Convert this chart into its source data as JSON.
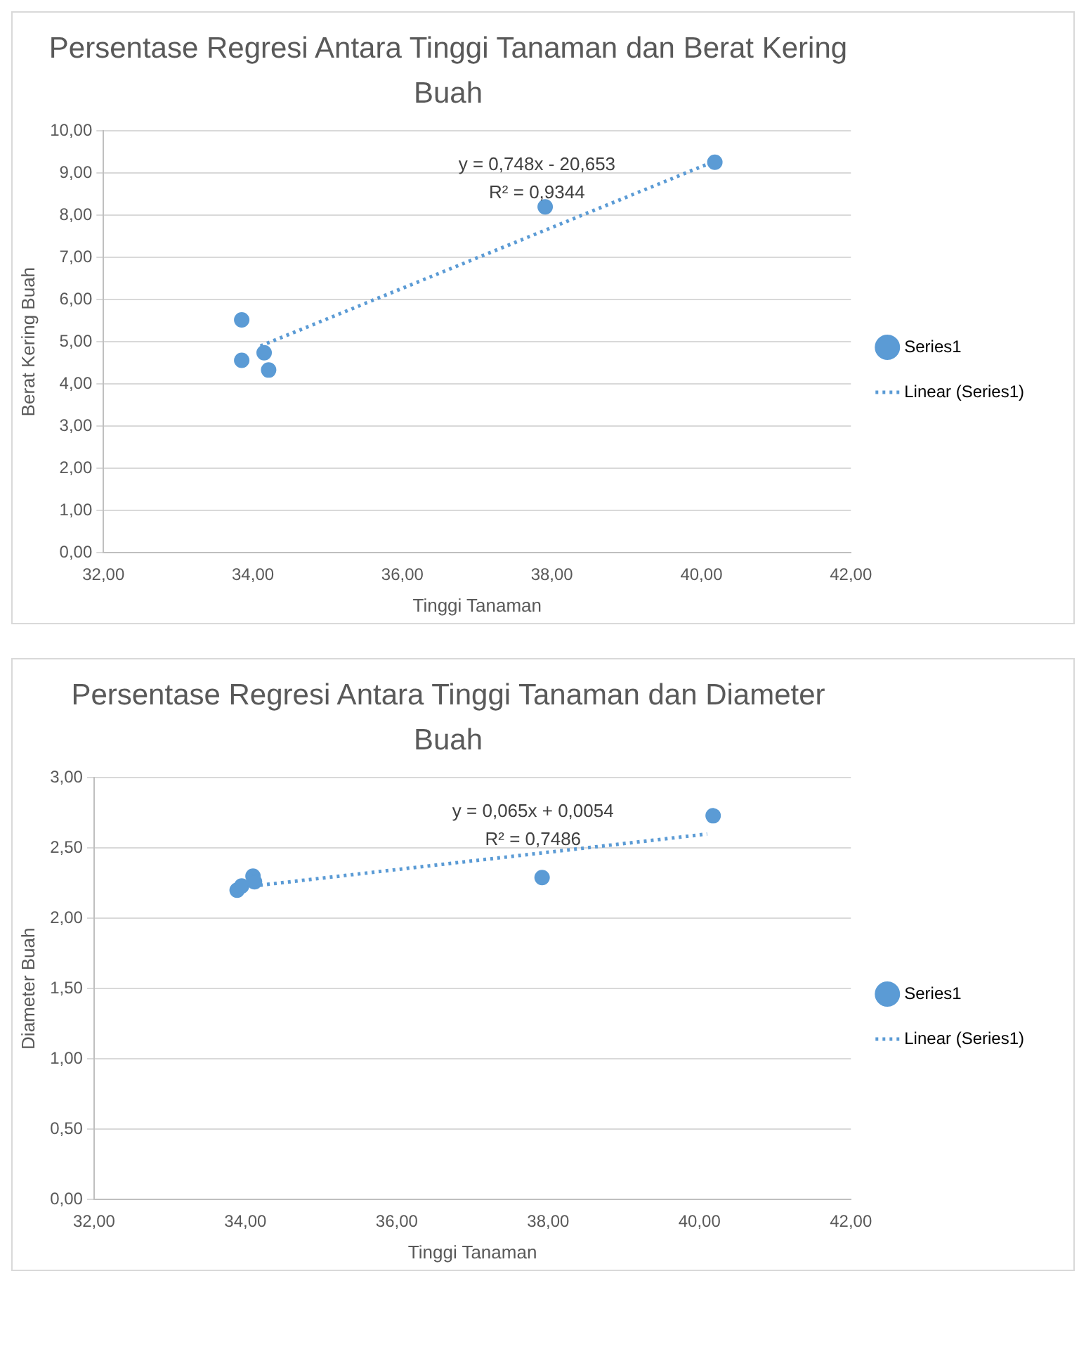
{
  "chart_data": [
    {
      "type": "scatter",
      "title": "Persentase Regresi Antara Tinggi Tanaman dan Berat Kering Buah",
      "xlabel": "Tinggi Tanaman",
      "ylabel": "Berat Kering Buah",
      "series": [
        {
          "name": "Series1",
          "type": "scatter",
          "color": "#5b9bd5",
          "marker": "circle",
          "x": [
            33.85,
            33.85,
            34.15,
            34.21,
            37.91,
            40.18
          ],
          "values": [
            5.52,
            4.56,
            4.74,
            4.33,
            8.2,
            9.26
          ]
        },
        {
          "name": "Linear (Series1)",
          "type": "line",
          "color": "#5b9bd5",
          "marker": "none",
          "line_style": "dotted",
          "x": [
            34.1,
            40.2
          ],
          "values": [
            4.9,
            9.3
          ]
        }
      ],
      "xlim": [
        32,
        42
      ],
      "xticks": [
        {
          "value": 32,
          "label": "32,00"
        },
        {
          "value": 34,
          "label": "34,00"
        },
        {
          "value": 36,
          "label": "36,00"
        },
        {
          "value": 38,
          "label": "38,00"
        },
        {
          "value": 40,
          "label": "40,00"
        },
        {
          "value": 42,
          "label": "42,00"
        }
      ],
      "ylim": [
        0,
        10
      ],
      "yticks": [
        {
          "value": 0,
          "label": "0,00"
        },
        {
          "value": 1,
          "label": "1,00"
        },
        {
          "value": 2,
          "label": "2,00"
        },
        {
          "value": 3,
          "label": "3,00"
        },
        {
          "value": 4,
          "label": "4,00"
        },
        {
          "value": 5,
          "label": "5,00"
        },
        {
          "value": 6,
          "label": "6,00"
        },
        {
          "value": 7,
          "label": "7,00"
        },
        {
          "value": 8,
          "label": "8,00"
        },
        {
          "value": 9,
          "label": "9,00"
        },
        {
          "value": 10,
          "label": "10,00"
        }
      ],
      "annotations": [
        "y = 0,748x - 20,653",
        "R² = 0,9344"
      ],
      "grid": "y",
      "legend": "right"
    },
    {
      "type": "scatter",
      "title": "Persentase Regresi Antara Tinggi Tanaman dan Diameter Buah",
      "xlabel": "Tinggi Tanaman",
      "ylabel": "Diameter Buah",
      "series": [
        {
          "name": "Series1",
          "type": "scatter",
          "color": "#5b9bd5",
          "marker": "circle",
          "x": [
            33.89,
            33.95,
            34.1,
            34.12,
            37.92,
            40.18
          ],
          "values": [
            2.2,
            2.23,
            2.3,
            2.26,
            2.29,
            2.73
          ]
        },
        {
          "name": "Linear (Series1)",
          "type": "line",
          "color": "#5b9bd5",
          "marker": "none",
          "line_style": "dotted",
          "x": [
            34.1,
            40.1
          ],
          "values": [
            2.23,
            2.6
          ]
        }
      ],
      "xlim": [
        32,
        42
      ],
      "xticks": [
        {
          "value": 32,
          "label": "32,00"
        },
        {
          "value": 34,
          "label": "34,00"
        },
        {
          "value": 36,
          "label": "36,00"
        },
        {
          "value": 38,
          "label": "38,00"
        },
        {
          "value": 40,
          "label": "40,00"
        },
        {
          "value": 42,
          "label": "42,00"
        }
      ],
      "ylim": [
        0,
        3
      ],
      "yticks": [
        {
          "value": 0,
          "label": "0,00"
        },
        {
          "value": 0.5,
          "label": "0,50"
        },
        {
          "value": 1,
          "label": "1,00"
        },
        {
          "value": 1.5,
          "label": "1,50"
        },
        {
          "value": 2,
          "label": "2,00"
        },
        {
          "value": 2.5,
          "label": "2,50"
        },
        {
          "value": 3,
          "label": "3,00"
        }
      ],
      "annotations": [
        "y = 0,065x + 0,0054",
        "R² = 0,7486"
      ],
      "grid": "y",
      "legend": "right"
    }
  ]
}
